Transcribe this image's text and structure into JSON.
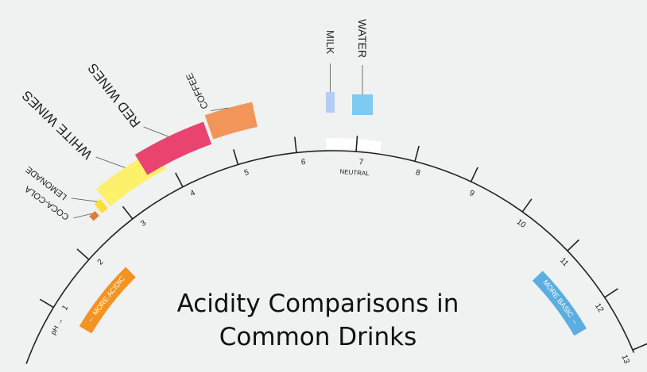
{
  "title_lines": [
    "Acidity Comparisons in",
    "Common Drinks"
  ],
  "scale": {
    "ticks": [
      1,
      2,
      3,
      4,
      5,
      6,
      7,
      8,
      9,
      10,
      11,
      12,
      13
    ],
    "tick_labels": [
      "1",
      "2",
      "3",
      "4",
      "5",
      "6",
      "7",
      "8",
      "9",
      "10",
      "11",
      "12",
      "13"
    ],
    "neutral_label": "NEUTRAL",
    "neutral_range": [
      6.5,
      7.4
    ],
    "ph_label": "pH →",
    "more_acidic": "← MORE ACIDIC",
    "more_basic": "MORE BASIC →",
    "acidic_color": "#f39321",
    "basic_color": "#5aaee0"
  },
  "drinks": [
    {
      "name": "COCA-COLA",
      "ph_range": [
        2.5,
        2.62
      ],
      "color": "#e07c3a"
    },
    {
      "name": "LEMONADE",
      "ph_range": [
        2.68,
        2.8
      ],
      "color": "#fde02f"
    },
    {
      "name": "WHITE WINES",
      "ph_range": [
        2.85,
        3.9
      ],
      "color": "#fdf06a"
    },
    {
      "name": "RED WINES",
      "ph_range": [
        3.6,
        4.7
      ],
      "color": "#e8446f"
    },
    {
      "name": "COFFEE",
      "ph_range": [
        4.75,
        5.45
      ],
      "color": "#f2955a"
    },
    {
      "name": "MILK",
      "ph_range": [
        6.5,
        6.8
      ],
      "color": "#b5cdf5"
    },
    {
      "name": "WATER",
      "ph_range": [
        7.0,
        7.5
      ],
      "color": "#7dcaf2"
    }
  ]
}
